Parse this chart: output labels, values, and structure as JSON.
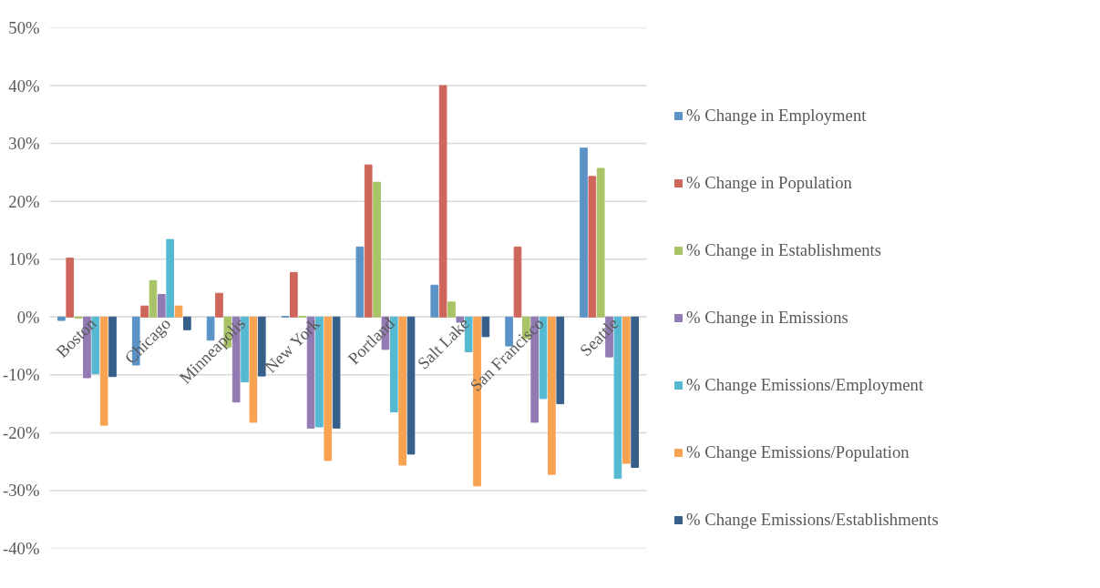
{
  "chart_data": {
    "type": "bar",
    "categories": [
      "Boston",
      "Chicago",
      "Minneapolis",
      "New York",
      "Portland",
      "Salt Lake",
      "San Francisco",
      "Seattle"
    ],
    "series": [
      {
        "name": "% Change in Employment",
        "color": "#5b93c7",
        "values": [
          -0.6,
          -8.3,
          -4.0,
          0.1,
          12.1,
          5.5,
          -5.0,
          29.2
        ]
      },
      {
        "name": "% Change in Population",
        "color": "#cf665c",
        "values": [
          10.2,
          1.9,
          4.1,
          7.7,
          26.3,
          40.0,
          12.1,
          24.3
        ]
      },
      {
        "name": "% Change in Establishments",
        "color": "#a9c467",
        "values": [
          -0.2,
          6.3,
          -5.2,
          0.1,
          23.3,
          2.6,
          -3.7,
          25.7
        ]
      },
      {
        "name": "% Change in Emissions",
        "color": "#927ab3",
        "values": [
          -10.5,
          3.9,
          -14.7,
          -19.2,
          -5.6,
          -0.9,
          -18.2,
          -6.9
        ]
      },
      {
        "name": "% Change Emissions/Employment",
        "color": "#55b9d1",
        "values": [
          -9.8,
          13.4,
          -11.2,
          -19.0,
          -16.4,
          -6.0,
          -14.1,
          -27.9
        ]
      },
      {
        "name": "% Change Emissions/Population",
        "color": "#f8a352",
        "values": [
          -18.7,
          1.9,
          -18.2,
          -24.8,
          -25.6,
          -29.2,
          -27.2,
          -25.3
        ]
      },
      {
        "name": "% Change Emissions/Establishments",
        "color": "#365f8a",
        "values": [
          -10.3,
          -2.2,
          -10.2,
          -19.2,
          -23.7,
          -3.4,
          -15.0,
          -26.0
        ]
      }
    ],
    "ylim": [
      -40,
      50
    ],
    "yticks": [
      {
        "value": -40,
        "label": "-40%"
      },
      {
        "value": -30,
        "label": "-30%"
      },
      {
        "value": -20,
        "label": "-20%"
      },
      {
        "value": -10,
        "label": "-10%"
      },
      {
        "value": 0,
        "label": "0%"
      },
      {
        "value": 10,
        "label": "10%"
      },
      {
        "value": 20,
        "label": "20%"
      },
      {
        "value": 30,
        "label": "30%"
      },
      {
        "value": 40,
        "label": "40%"
      },
      {
        "value": 50,
        "label": "50%"
      }
    ],
    "grid": "y",
    "legend": "right"
  }
}
